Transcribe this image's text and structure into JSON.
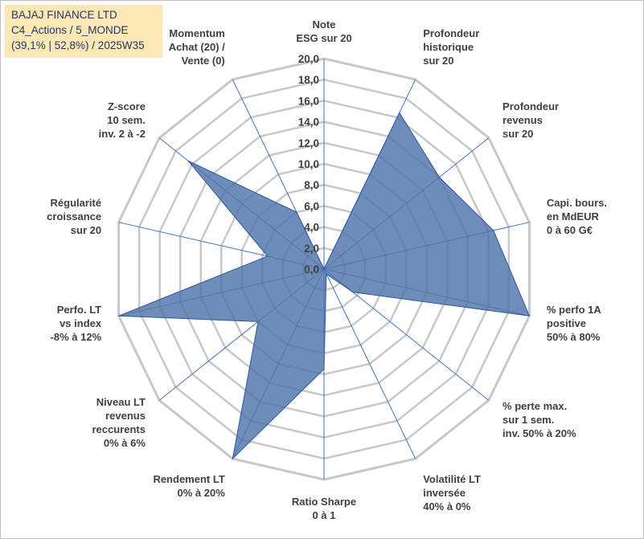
{
  "title_box": {
    "line1": "BAJAJ FINANCE LTD",
    "line2": "C4_Actions / 5_MONDE",
    "line3": "(39,1% | 52,8%) / 2025W35"
  },
  "chart_data": {
    "type": "radar",
    "r_min": 0,
    "r_max": 20,
    "r_step": 2,
    "tick_labels": [
      "0,0",
      "2,0",
      "4,0",
      "6,0",
      "8,0",
      "10,0",
      "12,0",
      "14,0",
      "16,0",
      "18,0",
      "20,0"
    ],
    "categories": [
      [
        "Note",
        "ESG sur 20"
      ],
      [
        "Profondeur",
        "historique",
        "sur 20"
      ],
      [
        "Profondeur",
        "revenus",
        "sur 20"
      ],
      [
        "Capi. bours.",
        "en MdEUR",
        "0 à 60 G€"
      ],
      [
        "% perfo 1A",
        "positive",
        "50% à 80%"
      ],
      [
        "% perte max.",
        "sur 1 sem.",
        "inv. 50% à 20%"
      ],
      [
        "Volatilité LT",
        "inversée",
        "40% à 0%"
      ],
      [
        "Ratio Sharpe",
        "0 à 1"
      ],
      [
        "Rendement LT",
        "0% à 20%"
      ],
      [
        "Niveau LT",
        "revenus",
        "reccurents",
        "0% à 6%"
      ],
      [
        "Perfo. LT",
        "vs index",
        "-8% à 12%"
      ],
      [
        "Régularité",
        "croissance",
        "sur 20"
      ],
      [
        "Z-score",
        "10 sem.",
        "inv. 2 à -2"
      ],
      [
        "Momentum",
        "Achat (20) /",
        "Vente (0)"
      ]
    ],
    "series": [
      {
        "values": [
          0,
          16.5,
          14.0,
          16.5,
          20.0,
          3.5,
          0.5,
          9.5,
          20.0,
          8.0,
          20.0,
          5.5,
          16.5,
          6.0
        ]
      }
    ],
    "colors": {
      "fill": "#4f74aa",
      "stroke": "#2f55a0",
      "grid": "#c8c8c8",
      "spoke": "#4472c4"
    },
    "grid": true,
    "legend": "none"
  }
}
